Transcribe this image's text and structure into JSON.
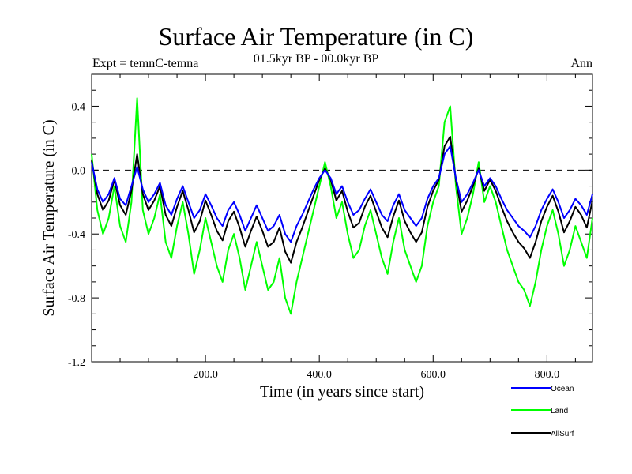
{
  "header": {
    "title": "Surface Air Temperature (in C)",
    "subtitle": "01.5kyr BP - 00.0kyr BP",
    "experiment": "Expt = temnC-temna",
    "season": "Ann"
  },
  "chart_data": {
    "type": "line",
    "title": "Surface Air Temperature (in C)",
    "xlabel": "Time (in years since start)",
    "ylabel": "Surface Air Temperature (in C)",
    "xlim": [
      0,
      880
    ],
    "ylim": [
      -1.2,
      0.6
    ],
    "x_ticks": [
      200,
      400,
      600,
      800
    ],
    "x_tick_labels": [
      "200.0",
      "400.0",
      "600.0",
      "800.0"
    ],
    "y_ticks": [
      -1.2,
      -0.8,
      -0.4,
      0.0,
      0.4
    ],
    "y_tick_labels": [
      "-1.2",
      "-0.8",
      "-0.4",
      "0.0",
      "0.4"
    ],
    "reference_line": 0.0,
    "legend_position": "bottom-right, below plot",
    "series": [
      {
        "name": "Ocean",
        "color": "#0000ff",
        "x": [
          0,
          10,
          20,
          30,
          40,
          50,
          60,
          70,
          80,
          90,
          100,
          110,
          120,
          130,
          140,
          150,
          160,
          170,
          180,
          190,
          200,
          210,
          220,
          230,
          240,
          250,
          260,
          270,
          280,
          290,
          300,
          310,
          320,
          330,
          340,
          350,
          360,
          370,
          380,
          390,
          400,
          410,
          420,
          430,
          440,
          450,
          460,
          470,
          480,
          490,
          500,
          510,
          520,
          530,
          540,
          550,
          560,
          570,
          580,
          590,
          600,
          610,
          620,
          630,
          640,
          650,
          660,
          670,
          680,
          690,
          700,
          710,
          720,
          730,
          740,
          750,
          760,
          770,
          780,
          790,
          800,
          810,
          820,
          830,
          840,
          850,
          860,
          870,
          880
        ],
        "values": [
          0.05,
          -0.12,
          -0.2,
          -0.15,
          -0.05,
          -0.18,
          -0.22,
          -0.1,
          0.02,
          -0.12,
          -0.2,
          -0.15,
          -0.08,
          -0.22,
          -0.28,
          -0.18,
          -0.1,
          -0.2,
          -0.3,
          -0.25,
          -0.15,
          -0.22,
          -0.3,
          -0.35,
          -0.25,
          -0.2,
          -0.28,
          -0.38,
          -0.3,
          -0.22,
          -0.3,
          -0.38,
          -0.35,
          -0.28,
          -0.4,
          -0.45,
          -0.35,
          -0.28,
          -0.2,
          -0.12,
          -0.05,
          0.0,
          -0.05,
          -0.15,
          -0.1,
          -0.2,
          -0.28,
          -0.25,
          -0.18,
          -0.12,
          -0.2,
          -0.28,
          -0.32,
          -0.22,
          -0.15,
          -0.25,
          -0.3,
          -0.35,
          -0.3,
          -0.18,
          -0.1,
          -0.05,
          0.1,
          0.15,
          -0.05,
          -0.2,
          -0.15,
          -0.08,
          0.0,
          -0.1,
          -0.05,
          -0.1,
          -0.18,
          -0.25,
          -0.3,
          -0.35,
          -0.38,
          -0.42,
          -0.35,
          -0.25,
          -0.18,
          -0.12,
          -0.2,
          -0.3,
          -0.25,
          -0.18,
          -0.22,
          -0.28,
          -0.15
        ]
      },
      {
        "name": "Land",
        "color": "#00ff00",
        "x": [
          0,
          10,
          20,
          30,
          40,
          50,
          60,
          70,
          80,
          90,
          100,
          110,
          120,
          130,
          140,
          150,
          160,
          170,
          180,
          190,
          200,
          210,
          220,
          230,
          240,
          250,
          260,
          270,
          280,
          290,
          300,
          310,
          320,
          330,
          340,
          350,
          360,
          370,
          380,
          390,
          400,
          410,
          420,
          430,
          440,
          450,
          460,
          470,
          480,
          490,
          500,
          510,
          520,
          530,
          540,
          550,
          560,
          570,
          580,
          590,
          600,
          610,
          620,
          630,
          640,
          650,
          660,
          670,
          680,
          690,
          700,
          710,
          720,
          730,
          740,
          750,
          760,
          770,
          780,
          790,
          800,
          810,
          820,
          830,
          840,
          850,
          860,
          870,
          880
        ],
        "values": [
          0.1,
          -0.25,
          -0.4,
          -0.3,
          -0.1,
          -0.35,
          -0.45,
          -0.2,
          0.45,
          -0.25,
          -0.4,
          -0.3,
          -0.15,
          -0.45,
          -0.55,
          -0.35,
          -0.2,
          -0.4,
          -0.65,
          -0.5,
          -0.3,
          -0.45,
          -0.6,
          -0.7,
          -0.5,
          -0.4,
          -0.55,
          -0.75,
          -0.6,
          -0.45,
          -0.6,
          -0.75,
          -0.7,
          -0.55,
          -0.8,
          -0.9,
          -0.7,
          -0.55,
          -0.4,
          -0.25,
          -0.1,
          0.05,
          -0.1,
          -0.3,
          -0.2,
          -0.4,
          -0.55,
          -0.5,
          -0.35,
          -0.25,
          -0.4,
          -0.55,
          -0.65,
          -0.45,
          -0.3,
          -0.5,
          -0.6,
          -0.7,
          -0.6,
          -0.35,
          -0.2,
          -0.1,
          0.3,
          0.4,
          -0.1,
          -0.4,
          -0.3,
          -0.15,
          0.05,
          -0.2,
          -0.1,
          -0.2,
          -0.35,
          -0.5,
          -0.6,
          -0.7,
          -0.75,
          -0.85,
          -0.7,
          -0.5,
          -0.35,
          -0.25,
          -0.4,
          -0.6,
          -0.5,
          -0.35,
          -0.45,
          -0.55,
          -0.3
        ]
      },
      {
        "name": "AllSurf",
        "color": "#000000",
        "x": [
          0,
          10,
          20,
          30,
          40,
          50,
          60,
          70,
          80,
          90,
          100,
          110,
          120,
          130,
          140,
          150,
          160,
          170,
          180,
          190,
          200,
          210,
          220,
          230,
          240,
          250,
          260,
          270,
          280,
          290,
          300,
          310,
          320,
          330,
          340,
          350,
          360,
          370,
          380,
          390,
          400,
          410,
          420,
          430,
          440,
          450,
          460,
          470,
          480,
          490,
          500,
          510,
          520,
          530,
          540,
          550,
          560,
          570,
          580,
          590,
          600,
          610,
          620,
          630,
          640,
          650,
          660,
          670,
          680,
          690,
          700,
          710,
          720,
          730,
          740,
          750,
          760,
          770,
          780,
          790,
          800,
          810,
          820,
          830,
          840,
          850,
          860,
          870,
          880
        ],
        "values": [
          0.06,
          -0.15,
          -0.25,
          -0.19,
          -0.06,
          -0.22,
          -0.28,
          -0.13,
          0.1,
          -0.15,
          -0.25,
          -0.19,
          -0.1,
          -0.28,
          -0.35,
          -0.23,
          -0.13,
          -0.25,
          -0.39,
          -0.32,
          -0.19,
          -0.28,
          -0.38,
          -0.44,
          -0.32,
          -0.26,
          -0.36,
          -0.48,
          -0.38,
          -0.29,
          -0.38,
          -0.48,
          -0.45,
          -0.36,
          -0.51,
          -0.58,
          -0.45,
          -0.36,
          -0.26,
          -0.16,
          -0.06,
          0.01,
          -0.06,
          -0.19,
          -0.13,
          -0.26,
          -0.36,
          -0.33,
          -0.23,
          -0.16,
          -0.26,
          -0.36,
          -0.42,
          -0.29,
          -0.19,
          -0.32,
          -0.39,
          -0.45,
          -0.39,
          -0.23,
          -0.13,
          -0.06,
          0.15,
          0.21,
          -0.06,
          -0.26,
          -0.19,
          -0.1,
          0.01,
          -0.13,
          -0.06,
          -0.13,
          -0.23,
          -0.32,
          -0.39,
          -0.45,
          -0.49,
          -0.55,
          -0.45,
          -0.32,
          -0.23,
          -0.16,
          -0.26,
          -0.39,
          -0.32,
          -0.23,
          -0.28,
          -0.36,
          -0.19
        ]
      }
    ]
  }
}
